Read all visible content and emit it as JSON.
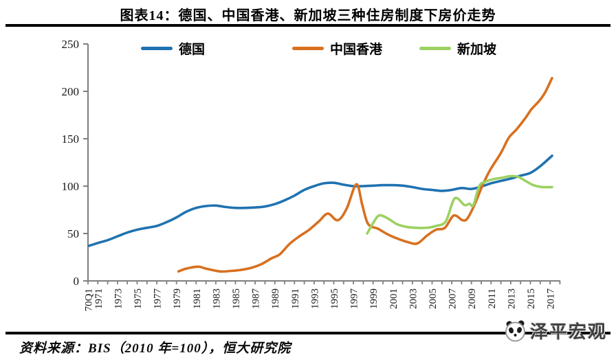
{
  "header": {
    "title": "图表14：德国、中国香港、新加坡三种住房制度下房价走势"
  },
  "legend": {
    "items": [
      {
        "label": "德国",
        "color": "#1F72B0"
      },
      {
        "label": "中国香港",
        "color": "#D8701F"
      },
      {
        "label": "新加坡",
        "color": "#9CD161"
      }
    ]
  },
  "chart_data": {
    "type": "line",
    "title": "图表14：德国、中国香港、新加坡三种住房制度下房价走势",
    "xlabel": "",
    "ylabel": "",
    "grid": false,
    "legend_position": "top",
    "axis_color": "#7F7F7F",
    "x_axis": {
      "range": [
        1970,
        2018
      ],
      "tick_labels": [
        "70Q1",
        "1971",
        "1973",
        "1975",
        "1977",
        "1979",
        "1981",
        "1983",
        "1985",
        "1987",
        "1989",
        "1991",
        "1993",
        "1995",
        "1997",
        "1999",
        "2001",
        "2003",
        "2005",
        "2007",
        "2009",
        "2011",
        "2013",
        "2015",
        "2017"
      ],
      "tick_years": [
        1970,
        1971,
        1973,
        1975,
        1977,
        1979,
        1981,
        1983,
        1985,
        1987,
        1989,
        1991,
        1993,
        1995,
        1997,
        1999,
        2001,
        2003,
        2005,
        2007,
        2009,
        2011,
        2013,
        2015,
        2017
      ],
      "minor_tick_every_years": 1
    },
    "y_axis": {
      "range": [
        0,
        250
      ],
      "ticks": [
        0,
        50,
        100,
        150,
        200,
        250
      ]
    },
    "series": [
      {
        "id": "germany",
        "name": "德国",
        "color": "#1F72B0",
        "points": [
          [
            1970.1,
            37
          ],
          [
            1971,
            40
          ],
          [
            1972,
            43
          ],
          [
            1973,
            47
          ],
          [
            1974,
            51
          ],
          [
            1975,
            54
          ],
          [
            1976,
            56
          ],
          [
            1977,
            58
          ],
          [
            1978,
            62
          ],
          [
            1979,
            67
          ],
          [
            1980,
            73
          ],
          [
            1981,
            77
          ],
          [
            1982,
            79
          ],
          [
            1983,
            79.5
          ],
          [
            1984,
            78
          ],
          [
            1985,
            77
          ],
          [
            1986,
            77
          ],
          [
            1987,
            77.5
          ],
          [
            1988,
            78.5
          ],
          [
            1989,
            81
          ],
          [
            1990,
            85
          ],
          [
            1991,
            90
          ],
          [
            1992,
            96
          ],
          [
            1993,
            100
          ],
          [
            1994,
            103
          ],
          [
            1995,
            103.5
          ],
          [
            1996,
            101.5
          ],
          [
            1997,
            100
          ],
          [
            1998,
            100
          ],
          [
            1999,
            100.5
          ],
          [
            2000,
            101
          ],
          [
            2001,
            101
          ],
          [
            2002,
            100.5
          ],
          [
            2003,
            99
          ],
          [
            2004,
            97
          ],
          [
            2005,
            96
          ],
          [
            2006,
            95
          ],
          [
            2007,
            96
          ],
          [
            2008,
            98
          ],
          [
            2009,
            97
          ],
          [
            2010,
            99.5
          ],
          [
            2011,
            103
          ],
          [
            2012,
            105.5
          ],
          [
            2013,
            108
          ],
          [
            2014,
            111
          ],
          [
            2015,
            114
          ],
          [
            2016,
            121
          ],
          [
            2017.2,
            132
          ]
        ]
      },
      {
        "id": "hongkong",
        "name": "中国香港",
        "color": "#D8701F",
        "points": [
          [
            1979.2,
            10
          ],
          [
            1980,
            13
          ],
          [
            1981.2,
            15
          ],
          [
            1982,
            13
          ],
          [
            1983.4,
            10
          ],
          [
            1984.5,
            10.5
          ],
          [
            1985.5,
            11.5
          ],
          [
            1986.5,
            13.5
          ],
          [
            1987.6,
            17.5
          ],
          [
            1988.7,
            24
          ],
          [
            1989.5,
            28
          ],
          [
            1990.5,
            39
          ],
          [
            1991.5,
            47
          ],
          [
            1992.5,
            54
          ],
          [
            1993.5,
            63
          ],
          [
            1994.4,
            71
          ],
          [
            1995.4,
            64
          ],
          [
            1996.3,
            76
          ],
          [
            1997.3,
            102
          ],
          [
            1997.9,
            80
          ],
          [
            1998.5,
            60
          ],
          [
            1999.5,
            55
          ],
          [
            2000.5,
            49
          ],
          [
            2001.5,
            44.5
          ],
          [
            2002.5,
            41
          ],
          [
            2003.5,
            39.5
          ],
          [
            2004.5,
            48
          ],
          [
            2005.4,
            54
          ],
          [
            2006.3,
            56
          ],
          [
            2007.2,
            69
          ],
          [
            2008.1,
            64
          ],
          [
            2008.6,
            66
          ],
          [
            2009.3,
            80
          ],
          [
            2010.1,
            100
          ],
          [
            2010.9,
            117
          ],
          [
            2012,
            135
          ],
          [
            2012.8,
            151
          ],
          [
            2013.6,
            160
          ],
          [
            2014.5,
            172
          ],
          [
            2015.1,
            181
          ],
          [
            2015.9,
            190
          ],
          [
            2016.5,
            199
          ],
          [
            2017.2,
            214
          ]
        ]
      },
      {
        "id": "singapore",
        "name": "新加坡",
        "color": "#9CD161",
        "points": [
          [
            1998.4,
            50
          ],
          [
            1999,
            61
          ],
          [
            1999.6,
            69
          ],
          [
            2000.4,
            66.5
          ],
          [
            2001.4,
            60
          ],
          [
            2002.4,
            57
          ],
          [
            2003.4,
            56
          ],
          [
            2004.4,
            56
          ],
          [
            2005.4,
            58
          ],
          [
            2006.4,
            63
          ],
          [
            2007.3,
            87
          ],
          [
            2008.3,
            80
          ],
          [
            2008.8,
            81.5
          ],
          [
            2009.2,
            80
          ],
          [
            2009.8,
            100
          ],
          [
            2010.5,
            105
          ],
          [
            2011.3,
            107.5
          ],
          [
            2012.2,
            109
          ],
          [
            2012.9,
            110.5
          ],
          [
            2013.7,
            110
          ],
          [
            2014.5,
            105.5
          ],
          [
            2015.3,
            101
          ],
          [
            2016.2,
            99
          ],
          [
            2017.2,
            99
          ]
        ]
      }
    ]
  },
  "footer": {
    "source": "资料来源：BIS（2010 年=100），恒大研究院",
    "brand": "泽平宏观"
  }
}
